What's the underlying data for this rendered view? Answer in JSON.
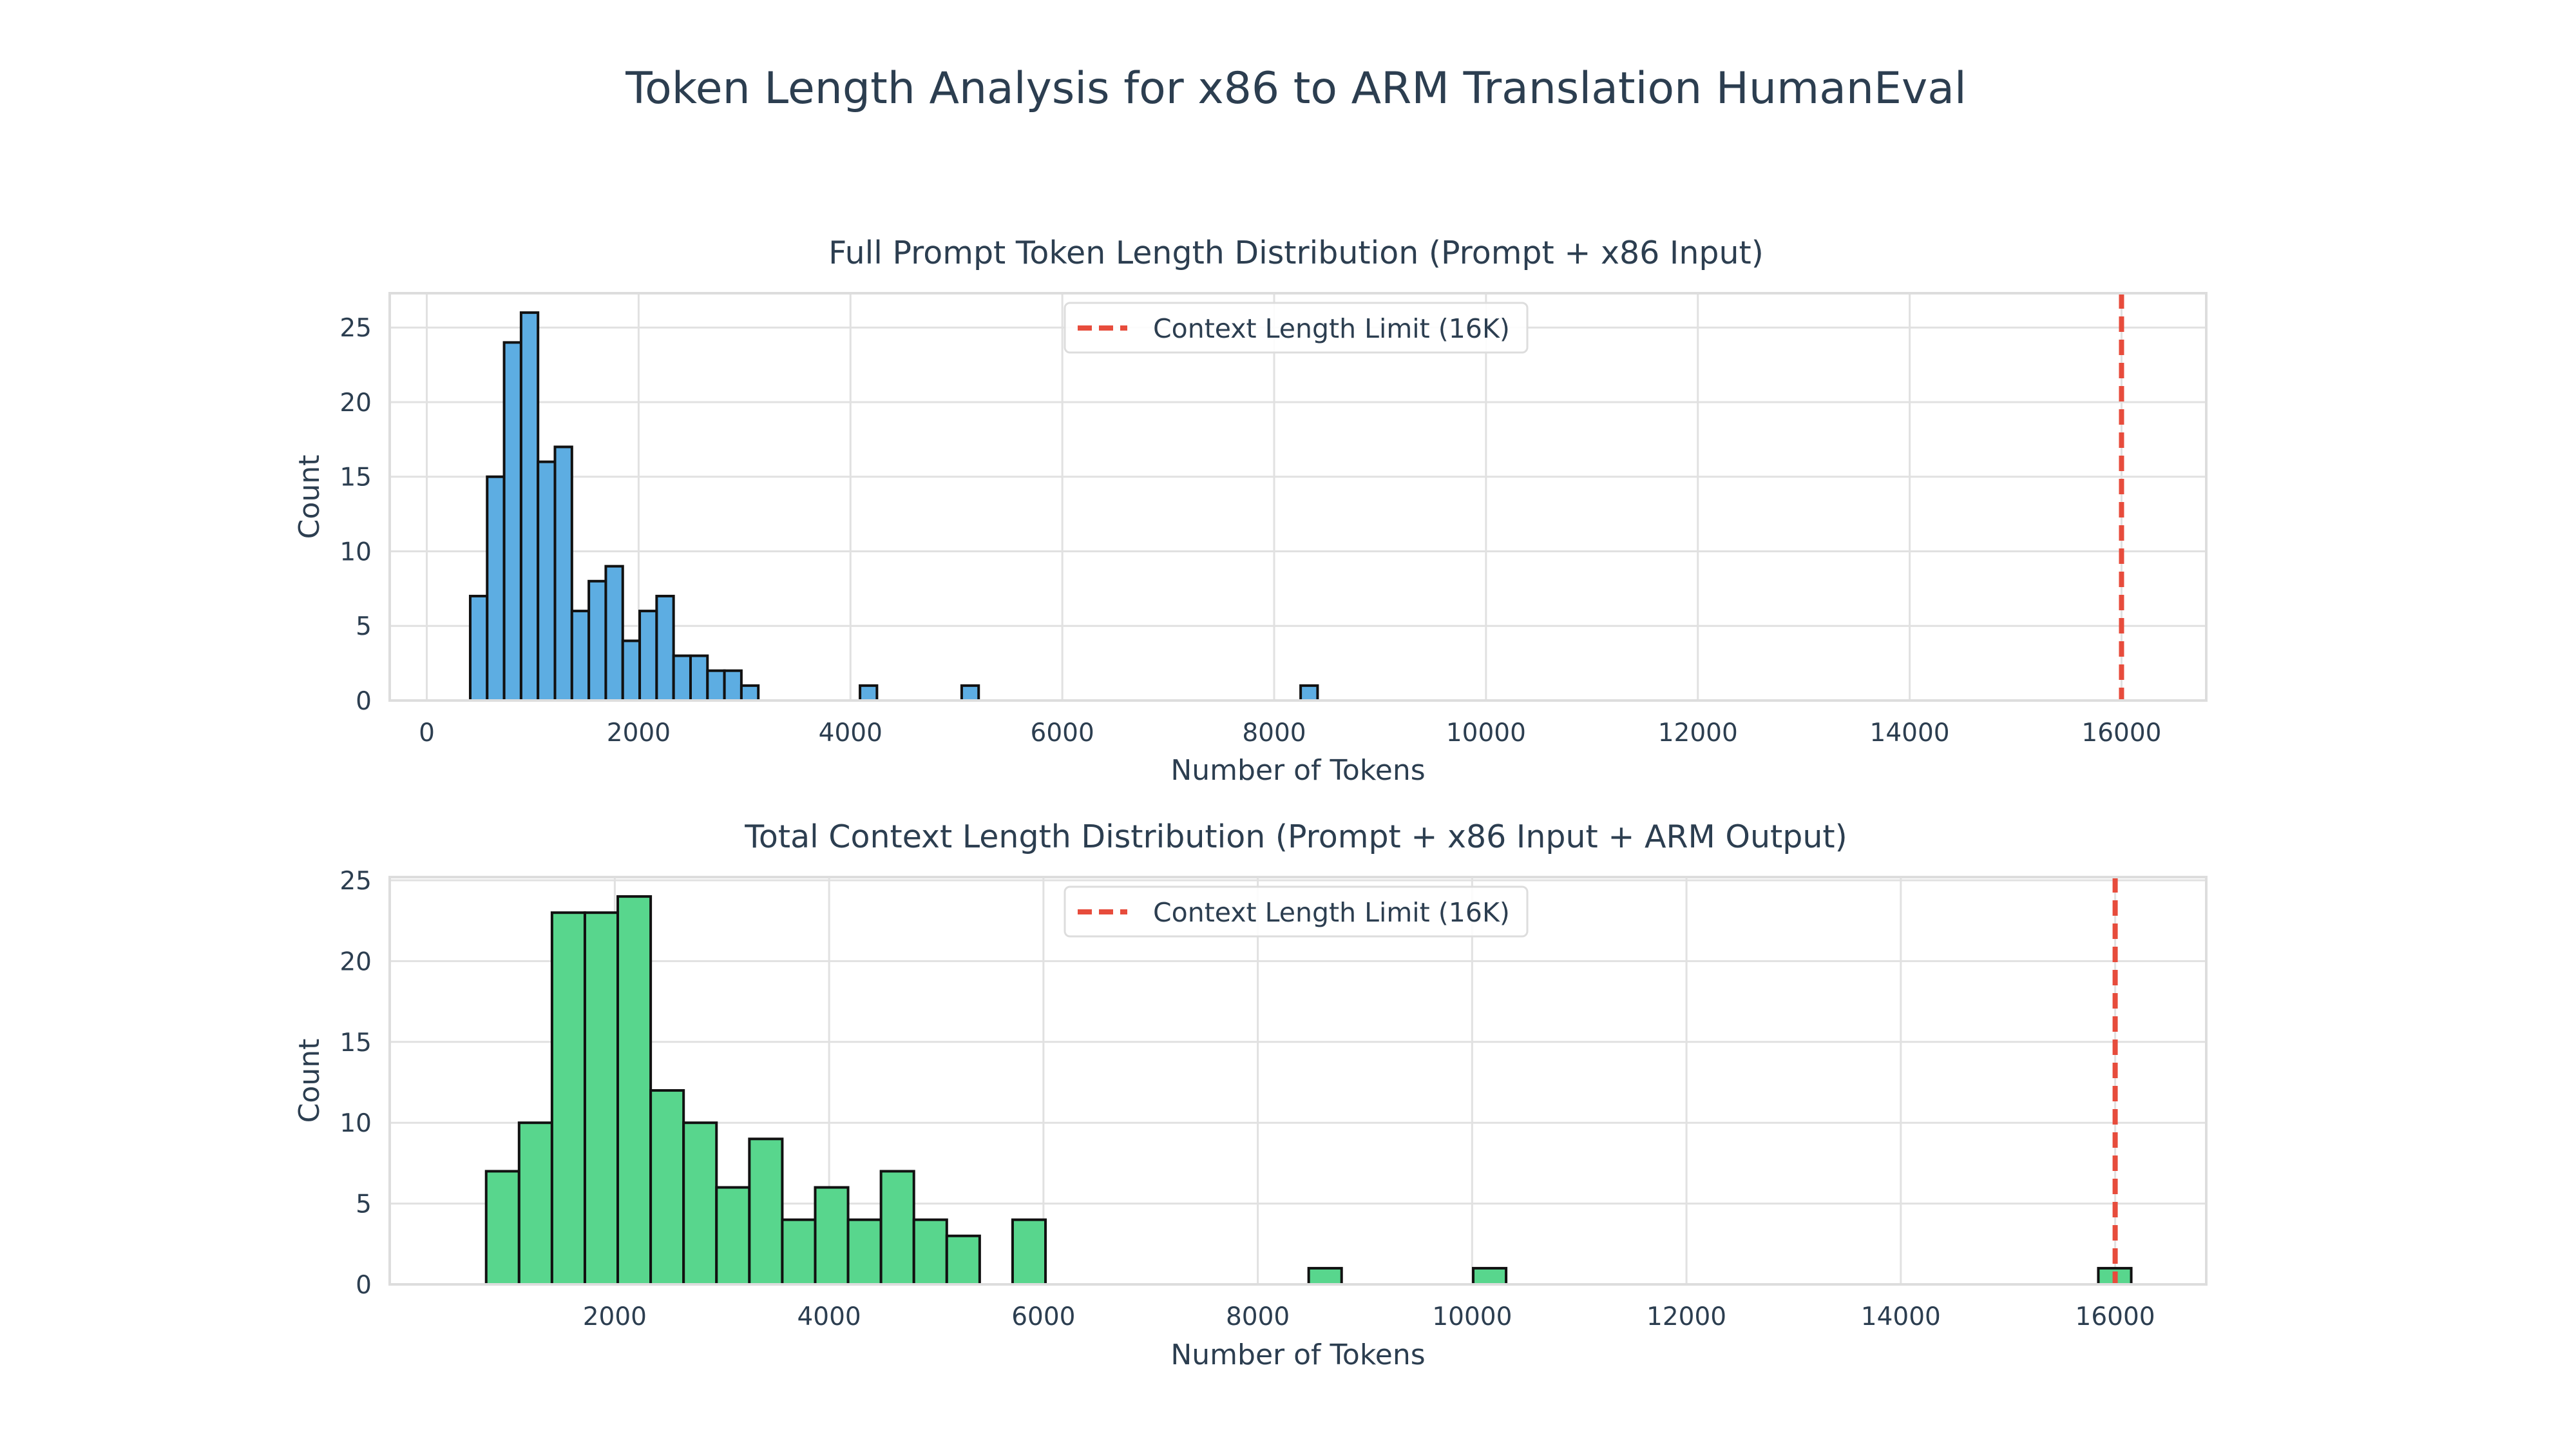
{
  "figure": {
    "title": "Token Length Analysis for x86 to ARM Translation HumanEval"
  },
  "colors": {
    "text": "#2c3e50",
    "grid": "#e1e1e1",
    "spine": "#dddddd",
    "bar_outline": "#111111",
    "limit_line": "#e74c3c",
    "series_top": "#5dade2",
    "series_bottom": "#58d68d"
  },
  "chart_data": [
    {
      "type": "bar",
      "title": "Full Prompt Token Length Distribution (Prompt + x86 Input)",
      "xlabel": "Number of Tokens",
      "ylabel": "Count",
      "xlim": [
        -350,
        16800
      ],
      "ylim": [
        0,
        27.3
      ],
      "xticks": [
        0,
        2000,
        4000,
        6000,
        8000,
        10000,
        12000,
        14000,
        16000
      ],
      "yticks": [
        0,
        5,
        10,
        15,
        20,
        25
      ],
      "grid": true,
      "legend": {
        "position": "top-center",
        "entries": [
          "Context Length Limit (16K)"
        ]
      },
      "reference_line": {
        "x": 16000,
        "label": "Context Length Limit (16K)",
        "style": "dashed"
      },
      "color": "#5dade2",
      "bin_width": 160,
      "bins": [
        {
          "start": 410,
          "count": 7
        },
        {
          "start": 570,
          "count": 15
        },
        {
          "start": 730,
          "count": 24
        },
        {
          "start": 890,
          "count": 26
        },
        {
          "start": 1050,
          "count": 16
        },
        {
          "start": 1210,
          "count": 17
        },
        {
          "start": 1370,
          "count": 6
        },
        {
          "start": 1530,
          "count": 8
        },
        {
          "start": 1690,
          "count": 9
        },
        {
          "start": 1850,
          "count": 4
        },
        {
          "start": 2010,
          "count": 6
        },
        {
          "start": 2170,
          "count": 7
        },
        {
          "start": 2330,
          "count": 3
        },
        {
          "start": 2490,
          "count": 3
        },
        {
          "start": 2650,
          "count": 2
        },
        {
          "start": 2810,
          "count": 2
        },
        {
          "start": 2970,
          "count": 1
        },
        {
          "start": 4090,
          "count": 1
        },
        {
          "start": 5050,
          "count": 1
        },
        {
          "start": 8250,
          "count": 1
        }
      ]
    },
    {
      "type": "bar",
      "title": "Total Context Length Distribution (Prompt + x86 Input + ARM Output)",
      "xlabel": "Number of Tokens",
      "ylabel": "Count",
      "xlim": [
        -100,
        16850
      ],
      "ylim": [
        0,
        25.2
      ],
      "xticks": [
        2000,
        4000,
        6000,
        8000,
        10000,
        12000,
        14000,
        16000
      ],
      "yticks": [
        0,
        5,
        10,
        15,
        20,
        25
      ],
      "grid": true,
      "legend": {
        "position": "top-center",
        "entries": [
          "Context Length Limit (16K)"
        ]
      },
      "reference_line": {
        "x": 16000,
        "label": "Context Length Limit (16K)",
        "style": "dashed"
      },
      "color": "#58d68d",
      "bin_width": 307,
      "bins": [
        {
          "start": 800,
          "count": 7
        },
        {
          "start": 1107,
          "count": 10
        },
        {
          "start": 1414,
          "count": 23
        },
        {
          "start": 1721,
          "count": 23
        },
        {
          "start": 2028,
          "count": 24
        },
        {
          "start": 2335,
          "count": 12
        },
        {
          "start": 2642,
          "count": 10
        },
        {
          "start": 2949,
          "count": 6
        },
        {
          "start": 3256,
          "count": 9
        },
        {
          "start": 3563,
          "count": 4
        },
        {
          "start": 3870,
          "count": 6
        },
        {
          "start": 4177,
          "count": 4
        },
        {
          "start": 4484,
          "count": 7
        },
        {
          "start": 4791,
          "count": 4
        },
        {
          "start": 5098,
          "count": 3
        },
        {
          "start": 5712,
          "count": 4
        },
        {
          "start": 8475,
          "count": 1
        },
        {
          "start": 10010,
          "count": 1
        },
        {
          "start": 15843,
          "count": 1
        }
      ]
    }
  ]
}
